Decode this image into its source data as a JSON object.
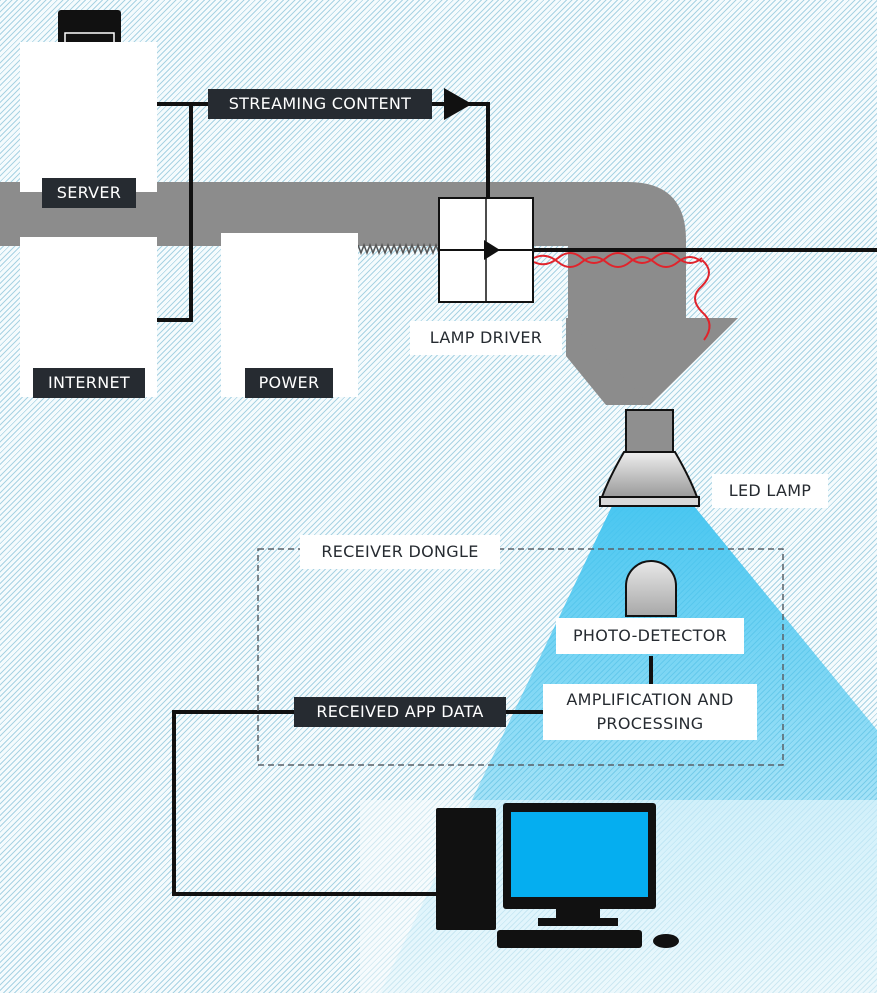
{
  "labels": {
    "server": "SERVER",
    "internet": "INTERNET",
    "power": "POWER",
    "streaming_content": "STREAMING CONTENT",
    "lamp_driver": "LAMP DRIVER",
    "led_lamp": "LED LAMP",
    "receiver_dongle": "RECEIVER DONGLE",
    "photo_detector": "PHOTO-DETECTOR",
    "amplification_line1": "AMPLIFICATION AND",
    "amplification_line2": "PROCESSING",
    "received_app_data": "RECEIVED APP DATA"
  },
  "icons": {
    "server": "server-tower-icon",
    "internet": "globe-icon",
    "power": "power-icon",
    "lamp_driver": "lamp-driver-icon",
    "led_lamp": "led-lamp-icon",
    "photo_detector": "photo-detector-icon",
    "computer": "desktop-computer-icon"
  },
  "colors": {
    "ink": "#262b31",
    "power_pipe": "#8c8c8c",
    "light_beam": "#41c4f0",
    "signal_wire": "#e0242c",
    "monitor_screen": "#05aef0"
  }
}
